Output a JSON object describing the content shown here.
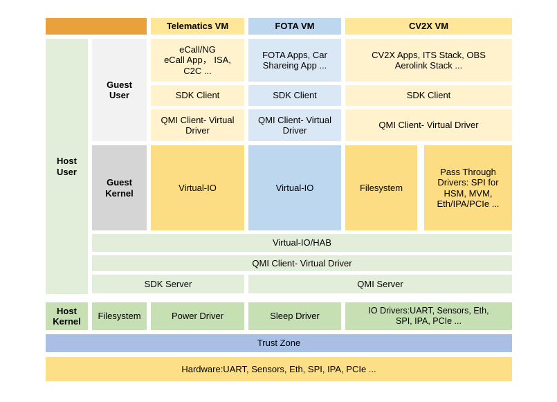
{
  "colors": {
    "orange": "#E9A23B",
    "yellow_header": "#FFE699",
    "yellow_light": "#FFF2CC",
    "yellow_mid": "#FCDD83",
    "yellow_hw": "#FCDF87",
    "blue_mid": "#BDD7EE",
    "blue_light": "#DAE7F4",
    "blue_trust": "#A9C0E4",
    "green_light": "#E2EED9",
    "green_mid": "#C6E0B4",
    "gray_light": "#F2F2F2",
    "gray_mid": "#D5D5D5"
  },
  "column_headers": {
    "telematics": "Telematics VM",
    "fota": "FOTA VM",
    "cv2x": "CV2X VM"
  },
  "row_labels": {
    "host_user": "Host\nUser",
    "guest_user": "Guest\nUser",
    "guest_kernel": "Guest\nKernel",
    "host_kernel": "Host\nKernel"
  },
  "telematics_vm": {
    "apps": "eCall/NG\neCall App， ISA,\nC2C ...",
    "sdk_client": "SDK Client",
    "qmi_client": "QMI Client- Virtual Driver",
    "virtual_io": "Virtual-IO"
  },
  "fota_vm": {
    "apps": "FOTA Apps, Car\nShareing App ...",
    "sdk_client": "SDK Client",
    "qmi_client": "QMI Client- Virtual Driver",
    "virtual_io": "Virtual-IO"
  },
  "cv2x_vm": {
    "apps": "CV2X Apps, ITS Stack, OBS\nAerolink Stack ...",
    "sdk_client": "SDK Client",
    "qmi_client": "QMI Client- Virtual Driver",
    "filesystem": "Filesystem",
    "pass_through": "Pass Through\nDrivers: SPI for\nHSM, MVM,\nEth/IPA/PCIe ..."
  },
  "host_layers": {
    "virtual_io_hab": "Virtual-IO/HAB",
    "qmi_client": "QMI Client- Virtual Driver",
    "sdk_server": "SDK Server",
    "qmi_server": "QMI Server"
  },
  "host_kernel_row": {
    "filesystem": "Filesystem",
    "power_driver": "Power Driver",
    "sleep_driver": "Sleep Driver",
    "io_drivers": "IO Drivers:UART, Sensors, Eth,\nSPI, IPA, PCIe ..."
  },
  "trust_zone": "Trust Zone",
  "hardware": "Hardware:UART, Sensors, Eth, SPI, IPA, PCIe ..."
}
